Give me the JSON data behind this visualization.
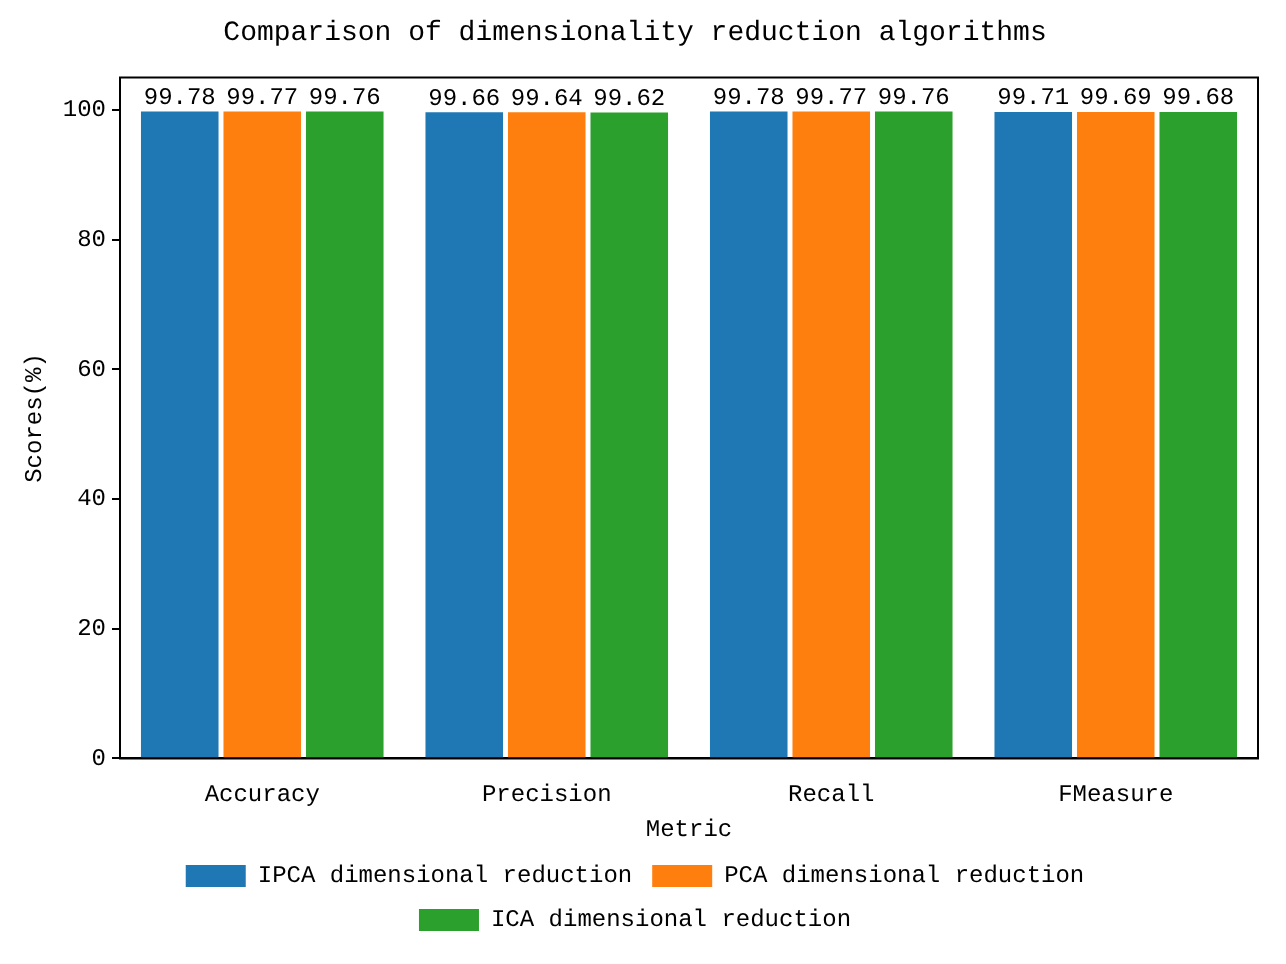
{
  "chart_data": {
    "type": "bar",
    "title": "Comparison of dimensionality reduction algorithms",
    "xlabel": "Metric",
    "ylabel": "Scores(%)",
    "categories": [
      "Accuracy",
      "Precision",
      "Recall",
      "FMeasure"
    ],
    "series": [
      {
        "name": "IPCA dimensional reduction",
        "color": "#1f77b4",
        "values": [
          99.78,
          99.66,
          99.78,
          99.71
        ]
      },
      {
        "name": "PCA dimensional reduction",
        "color": "#ff7f0e",
        "values": [
          99.77,
          99.64,
          99.77,
          99.69
        ]
      },
      {
        "name": "ICA dimensional reduction",
        "color": "#2ca02c",
        "values": [
          99.76,
          99.62,
          99.76,
          99.68
        ]
      }
    ],
    "ylim": [
      0,
      105
    ],
    "yticks": [
      0,
      20,
      40,
      60,
      80,
      100
    ],
    "grid": false,
    "legend": "bottom",
    "data_labels": true
  }
}
